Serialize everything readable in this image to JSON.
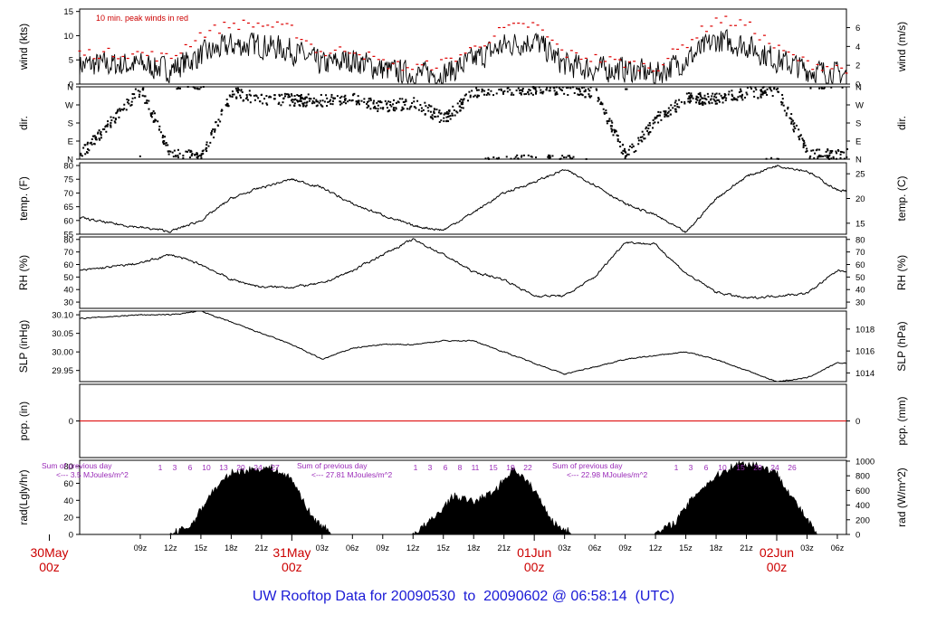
{
  "title": "UW Rooftop Data for 20090530  to  20090602 @ 06:58:14  (UTC)",
  "time_axis": {
    "hour_labels": [
      "09z",
      "12z",
      "15z",
      "18z",
      "21z",
      "03z",
      "06z",
      "09z",
      "12z",
      "15z",
      "18z",
      "21z",
      "03z",
      "06z",
      "09z",
      "12z",
      "15z",
      "18z",
      "21z",
      "03z",
      "06z"
    ],
    "hour_values": [
      9,
      12,
      15,
      18,
      21,
      27,
      30,
      33,
      36,
      39,
      42,
      45,
      51,
      54,
      57,
      60,
      63,
      66,
      69,
      75,
      78
    ],
    "day_labels": [
      {
        "top": "30May",
        "bottom": "00z",
        "t": 0
      },
      {
        "top": "31May",
        "bottom": "00z",
        "t": 24
      },
      {
        "top": "01Jun",
        "bottom": "00z",
        "t": 48
      },
      {
        "top": "02Jun",
        "bottom": "00z",
        "t": 72
      }
    ]
  },
  "panels": {
    "wind": {
      "ylabel_left": "wind (kts)",
      "ylabel_right": "wind (m/s)",
      "annotation": "10 min. peak winds in red",
      "left_ticks": [
        0,
        5,
        10,
        15
      ],
      "right_ticks": [
        0,
        2,
        4,
        6
      ]
    },
    "dir": {
      "ylabel_left": "dir.",
      "ylabel_right": "dir.",
      "ticks": [
        "N",
        "E",
        "S",
        "W",
        "N"
      ]
    },
    "temp": {
      "ylabel_left": "temp. (F)",
      "ylabel_right": "temp. (C)",
      "left_ticks": [
        55,
        60,
        65,
        70,
        75,
        80
      ],
      "right_ticks": [
        15,
        20,
        25
      ]
    },
    "rh": {
      "ylabel_left": "RH (%)",
      "ylabel_right": "RH (%)",
      "left_ticks": [
        30,
        40,
        50,
        60,
        70,
        80
      ],
      "right_ticks": [
        30,
        40,
        50,
        60,
        70,
        80
      ]
    },
    "slp": {
      "ylabel_left": "SLP (inHg)",
      "ylabel_right": "SLP (hPa)",
      "left_ticks": [
        "29.95",
        "30.00",
        "30.05",
        "30.10"
      ],
      "right_ticks": [
        1014,
        1016,
        1018
      ]
    },
    "pcp": {
      "ylabel_left": "pcp. (in)",
      "ylabel_right": "pcp. (mm)",
      "left_ticks": [
        0
      ],
      "right_ticks": [
        0
      ]
    },
    "rad": {
      "ylabel_left": "rad(Lgly/hr)",
      "ylabel_right": "rad (W/m^2)",
      "left_ticks": [
        0,
        20,
        40,
        60,
        80
      ],
      "right_ticks": [
        0,
        200,
        400,
        600,
        800,
        1000
      ],
      "notes": [
        {
          "line1": "Sum of previous day",
          "line2": "<--- 3.5 MJoules/m^2"
        },
        {
          "line1": "Sum of previous day",
          "line2": "<--- 27.81 MJoules/m^2"
        },
        {
          "line1": "Sum of previous day",
          "line2": "<--- 22.98 MJoules/m^2"
        }
      ],
      "hour_marks": [
        [
          "1",
          "3",
          "6",
          "10",
          "13",
          "20",
          "24",
          "27"
        ],
        [
          "1",
          "3",
          "6",
          "8",
          "11",
          "15",
          "19",
          "22"
        ],
        [
          "1",
          "3",
          "6",
          "10",
          "15",
          "20",
          "24",
          "26"
        ]
      ]
    }
  },
  "chart_data": [
    {
      "type": "line",
      "series": [
        {
          "name": "wind (kts)",
          "x": [
            3,
            9,
            12,
            15,
            18,
            21,
            24,
            27,
            30,
            33,
            36,
            39,
            42,
            45,
            48,
            51,
            54,
            57,
            60,
            63,
            66,
            69,
            72,
            75,
            78
          ],
          "y": [
            4,
            4,
            3,
            6,
            8,
            8,
            7,
            4,
            5,
            3,
            2,
            2,
            5,
            8,
            9,
            4,
            3,
            3,
            2,
            5,
            9,
            8,
            5,
            3,
            2
          ]
        },
        {
          "name": "10 min. peak winds in red",
          "x": [
            3,
            9,
            12,
            15,
            18,
            21,
            24,
            27,
            30,
            33,
            36,
            39,
            42,
            45,
            48,
            51,
            54,
            57,
            60,
            63,
            66,
            69,
            72,
            75,
            78
          ],
          "y": [
            6,
            6,
            5,
            10,
            12,
            12,
            11,
            6,
            7,
            4,
            3,
            4,
            7,
            11,
            12,
            6,
            5,
            4,
            3,
            8,
            13,
            12,
            7,
            4,
            3
          ]
        }
      ],
      "ylim": [
        0,
        15.5
      ]
    },
    {
      "type": "scatter",
      "series": [
        {
          "name": "dir.",
          "x": [
            3,
            9,
            12,
            15,
            18,
            21,
            24,
            27,
            30,
            33,
            36,
            39,
            42,
            45,
            48,
            51,
            54,
            57,
            60,
            63,
            66,
            69,
            72,
            75,
            78
          ],
          "y": [
            20,
            350,
            20,
            10,
            330,
            300,
            295,
            290,
            300,
            260,
            280,
            200,
            330,
            350,
            350,
            350,
            330,
            10,
            200,
            300,
            300,
            330,
            340,
            20,
            20
          ]
        }
      ],
      "ylim": [
        0,
        360
      ]
    },
    {
      "type": "line",
      "series": [
        {
          "name": "temp. (F)",
          "x": [
            3,
            6,
            9,
            12,
            15,
            18,
            21,
            24,
            27,
            30,
            33,
            36,
            39,
            42,
            45,
            48,
            51,
            54,
            57,
            60,
            63,
            66,
            69,
            72,
            75,
            78
          ],
          "y": [
            61,
            59,
            57.5,
            56,
            60,
            68,
            72,
            75,
            72,
            66,
            62,
            58,
            56.5,
            63,
            70,
            74,
            78.5,
            73,
            66,
            62,
            55.5,
            68,
            76,
            80,
            78,
            71
          ]
        }
      ],
      "ylim": [
        55,
        81
      ]
    },
    {
      "type": "line",
      "series": [
        {
          "name": "RH (%)",
          "x": [
            3,
            6,
            9,
            12,
            15,
            18,
            21,
            24,
            27,
            30,
            33,
            36,
            39,
            42,
            45,
            48,
            51,
            54,
            57,
            60,
            63,
            66,
            69,
            72,
            75,
            78
          ],
          "y": [
            55,
            58,
            61,
            68,
            60,
            48,
            42,
            42,
            45,
            55,
            68,
            80,
            68,
            54,
            48,
            35,
            35,
            50,
            78,
            76,
            53,
            38,
            33,
            35,
            37,
            55
          ]
        }
      ],
      "ylim": [
        25,
        82
      ]
    },
    {
      "type": "line",
      "series": [
        {
          "name": "SLP (inHg)",
          "x": [
            3,
            9,
            12,
            15,
            18,
            21,
            24,
            27,
            30,
            33,
            36,
            39,
            42,
            45,
            48,
            51,
            54,
            57,
            60,
            63,
            66,
            69,
            72,
            75,
            78
          ],
          "y": [
            30.09,
            30.1,
            30.1,
            30.11,
            30.08,
            30.05,
            30.02,
            29.98,
            30.01,
            30.02,
            30.02,
            30.03,
            30.03,
            30.0,
            29.97,
            29.94,
            29.96,
            29.98,
            29.99,
            30.0,
            29.98,
            29.95,
            29.92,
            29.93,
            29.97
          ]
        }
      ],
      "ylim": [
        29.92,
        30.11
      ]
    },
    {
      "type": "line",
      "series": [
        {
          "name": "pcp. (in)",
          "x": [
            3,
            78
          ],
          "y": [
            0,
            0
          ]
        }
      ],
      "ylim": [
        -0.1,
        0.1
      ]
    },
    {
      "type": "area",
      "series": [
        {
          "name": "rad(Lgly/hr)",
          "x": [
            12,
            14,
            16,
            18,
            20,
            22,
            24,
            26,
            28,
            36,
            38,
            40,
            42,
            44,
            46,
            48,
            50,
            52,
            60,
            62,
            64,
            66,
            68,
            70,
            72,
            74,
            76
          ],
          "y": [
            0,
            10,
            48,
            72,
            76,
            78,
            65,
            20,
            0,
            0,
            18,
            45,
            38,
            50,
            78,
            52,
            12,
            0,
            0,
            15,
            48,
            68,
            83,
            82,
            72,
            35,
            0
          ]
        }
      ],
      "ylim": [
        0,
        87
      ]
    }
  ]
}
